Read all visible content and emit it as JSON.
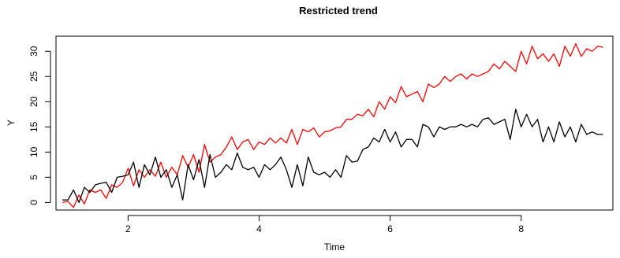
{
  "chart_data": {
    "type": "line",
    "title": "Restricted trend",
    "xlabel": "Time",
    "ylabel": "Y",
    "xlim": [
      0.9,
      9.4
    ],
    "ylim": [
      -1.5,
      33
    ],
    "xticks": [
      2,
      4,
      6,
      8
    ],
    "yticks": [
      0,
      5,
      10,
      15,
      20,
      25,
      30
    ],
    "grid": false,
    "legend": "none",
    "series": [
      {
        "color": "#ff0000",
        "x": [
          1.0,
          1.083,
          1.167,
          1.25,
          1.333,
          1.417,
          1.5,
          1.583,
          1.667,
          1.75,
          1.833,
          1.917,
          2.0,
          2.083,
          2.167,
          2.25,
          2.333,
          2.417,
          2.5,
          2.583,
          2.667,
          2.75,
          2.833,
          2.917,
          3.0,
          3.083,
          3.167,
          3.25,
          3.333,
          3.417,
          3.5,
          3.583,
          3.667,
          3.75,
          3.833,
          3.917,
          4.0,
          4.083,
          4.167,
          4.25,
          4.333,
          4.417,
          4.5,
          4.583,
          4.667,
          4.75,
          4.833,
          4.917,
          5.0,
          5.083,
          5.167,
          5.25,
          5.333,
          5.417,
          5.5,
          5.583,
          5.667,
          5.75,
          5.833,
          5.917,
          6.0,
          6.083,
          6.167,
          6.25,
          6.333,
          6.417,
          6.5,
          6.583,
          6.667,
          6.75,
          6.833,
          6.917,
          7.0,
          7.083,
          7.167,
          7.25,
          7.333,
          7.417,
          7.5,
          7.583,
          7.667,
          7.75,
          7.833,
          7.917,
          8.0,
          8.083,
          8.167,
          8.25,
          8.333,
          8.417,
          8.5,
          8.583,
          8.667,
          8.75,
          8.833,
          8.917,
          9.0,
          9.083,
          9.167,
          9.25
        ],
        "values": [
          0.0,
          0.2,
          -1.0,
          1.5,
          -0.3,
          2.5,
          2.0,
          2.5,
          0.8,
          3.5,
          3.0,
          4.0,
          6.8,
          3.3,
          6.5,
          5.0,
          6.5,
          5.2,
          8.0,
          5.0,
          7.0,
          5.5,
          9.3,
          7.0,
          9.5,
          6.0,
          11.5,
          8.0,
          9.0,
          9.5,
          11.0,
          13.0,
          10.5,
          12.0,
          12.5,
          10.5,
          12.0,
          11.5,
          12.8,
          11.8,
          12.8,
          11.8,
          14.5,
          11.5,
          14.5,
          14.0,
          14.8,
          13.0,
          14.0,
          14.2,
          14.8,
          15.0,
          16.5,
          16.5,
          17.5,
          17.2,
          18.5,
          17.0,
          20.0,
          18.5,
          21.0,
          19.8,
          23.0,
          21.0,
          21.5,
          22.0,
          20.0,
          23.5,
          22.8,
          23.5,
          25.0,
          24.0,
          25.0,
          25.5,
          24.5,
          25.5,
          25.0,
          25.5,
          26.0,
          27.5,
          26.5,
          28.0,
          27.0,
          26.0,
          30.0,
          27.5,
          31.0,
          28.5,
          29.5,
          28.0,
          29.5,
          27.0,
          31.0,
          29.0,
          31.5,
          29.0,
          30.5,
          30.0,
          31.0,
          30.8
        ]
      },
      {
        "color": "#000000",
        "x": [
          1.0,
          1.083,
          1.167,
          1.25,
          1.333,
          1.417,
          1.5,
          1.583,
          1.667,
          1.75,
          1.833,
          1.917,
          2.0,
          2.083,
          2.167,
          2.25,
          2.333,
          2.417,
          2.5,
          2.583,
          2.667,
          2.75,
          2.833,
          2.917,
          3.0,
          3.083,
          3.167,
          3.25,
          3.333,
          3.417,
          3.5,
          3.583,
          3.667,
          3.75,
          3.833,
          3.917,
          4.0,
          4.083,
          4.167,
          4.25,
          4.333,
          4.417,
          4.5,
          4.583,
          4.667,
          4.75,
          4.833,
          4.917,
          5.0,
          5.083,
          5.167,
          5.25,
          5.333,
          5.417,
          5.5,
          5.583,
          5.667,
          5.75,
          5.833,
          5.917,
          6.0,
          6.083,
          6.167,
          6.25,
          6.333,
          6.417,
          6.5,
          6.583,
          6.667,
          6.75,
          6.833,
          6.917,
          7.0,
          7.083,
          7.167,
          7.25,
          7.333,
          7.417,
          7.5,
          7.583,
          7.667,
          7.75,
          7.833,
          7.917,
          8.0,
          8.083,
          8.167,
          8.25,
          8.333,
          8.417,
          8.5,
          8.583,
          8.667,
          8.75,
          8.833,
          8.917,
          9.0,
          9.083,
          9.167,
          9.25
        ],
        "values": [
          0.5,
          0.5,
          2.5,
          0.0,
          3.0,
          2.0,
          3.5,
          3.8,
          4.0,
          2.0,
          5.0,
          5.2,
          5.5,
          8.0,
          3.0,
          7.5,
          5.5,
          9.0,
          5.0,
          6.5,
          3.0,
          5.5,
          0.5,
          7.5,
          4.5,
          8.5,
          3.0,
          9.5,
          5.0,
          6.0,
          7.5,
          6.5,
          9.8,
          7.0,
          6.5,
          7.0,
          5.0,
          7.5,
          6.5,
          7.5,
          9.0,
          6.5,
          3.0,
          7.5,
          3.3,
          9.0,
          6.0,
          5.5,
          6.0,
          5.0,
          6.5,
          5.0,
          9.3,
          8.0,
          8.2,
          10.5,
          11.0,
          12.8,
          12.0,
          14.5,
          12.0,
          14.0,
          11.0,
          12.5,
          12.5,
          11.0,
          15.5,
          15.0,
          13.0,
          15.0,
          14.5,
          15.0,
          15.0,
          15.5,
          15.0,
          15.5,
          15.0,
          16.5,
          16.8,
          15.5,
          16.0,
          16.5,
          12.5,
          18.5,
          15.0,
          17.5,
          15.0,
          16.5,
          12.0,
          15.0,
          12.0,
          16.0,
          13.0,
          15.0,
          12.0,
          15.5,
          13.5,
          14.0,
          13.5,
          13.5
        ]
      }
    ]
  }
}
